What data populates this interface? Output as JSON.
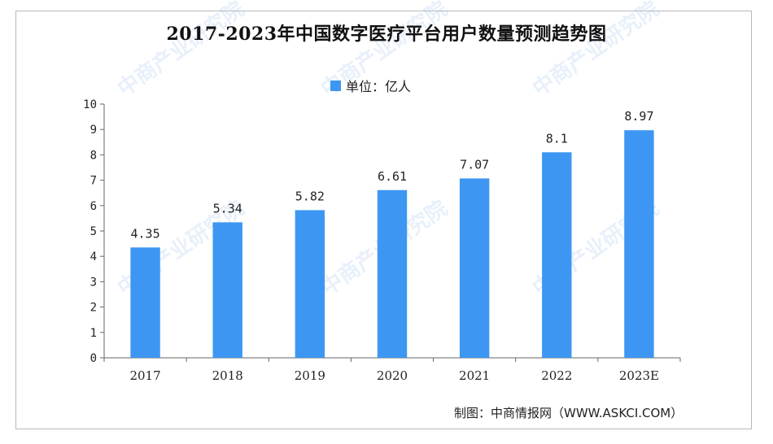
{
  "chart_data": {
    "type": "bar",
    "title": "2017-2023年中国数字医疗平台用户数量预测趋势图",
    "legend": "单位：亿人",
    "categories": [
      "2017",
      "2018",
      "2019",
      "2020",
      "2021",
      "2022",
      "2023E"
    ],
    "values": [
      4.35,
      5.34,
      5.82,
      6.61,
      7.07,
      8.1,
      8.97
    ],
    "value_labels": [
      "4.35",
      "5.34",
      "5.82",
      "6.61",
      "7.07",
      "8.1",
      "8.97"
    ],
    "yticks": [
      "0",
      "1",
      "2",
      "3",
      "4",
      "5",
      "6",
      "7",
      "8",
      "9",
      "10"
    ],
    "ylim": [
      0,
      10
    ],
    "bar_color": "#3d97f2"
  },
  "source": "制图：中商情报网（WWW.ASKCI.COM）",
  "watermark": "中商产业研究院"
}
